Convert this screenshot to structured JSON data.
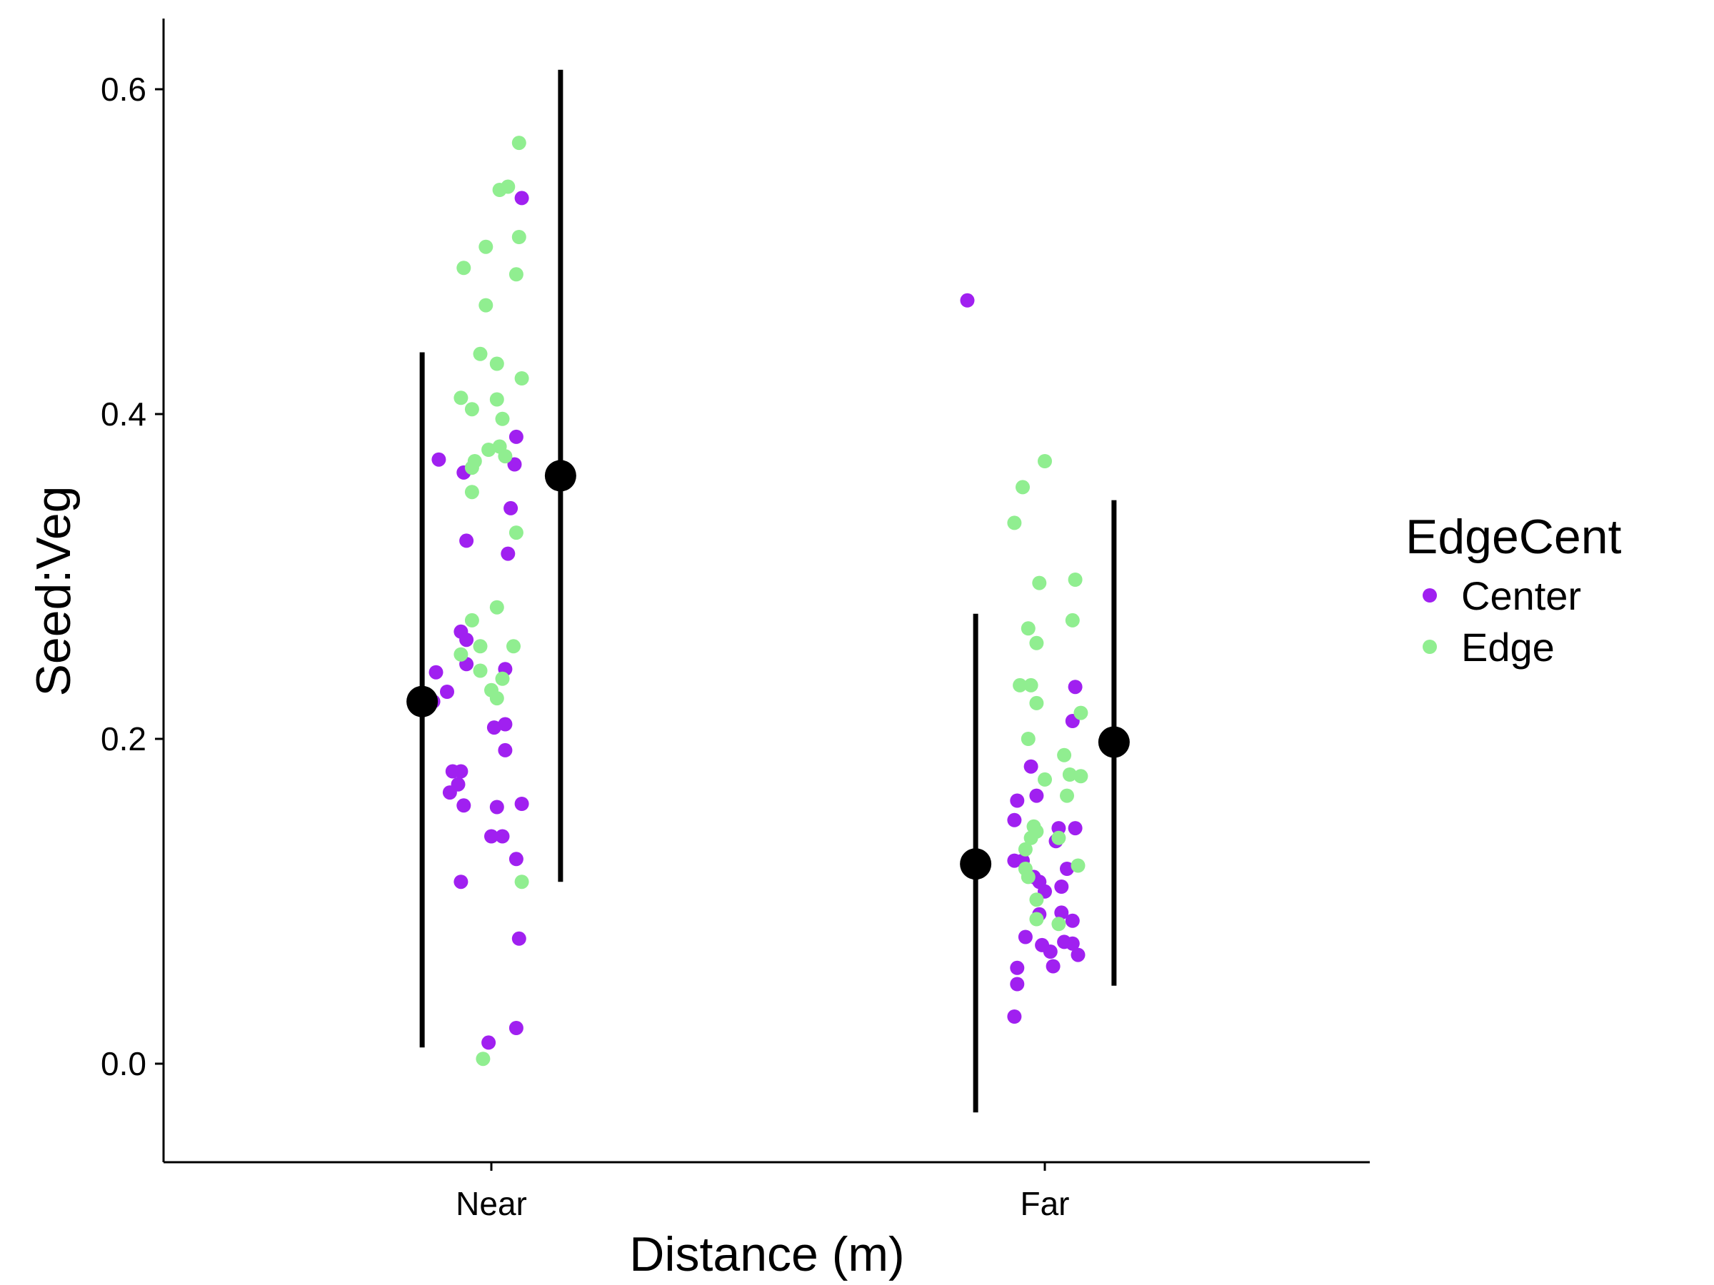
{
  "chart_data": {
    "type": "scatter",
    "xlabel": "Distance (m)",
    "ylabel": "Seed:Veg",
    "categories": [
      "Near",
      "Far"
    ],
    "ylim": [
      -0.06,
      0.645
    ],
    "yticks": [
      "0.0",
      "0.2",
      "0.4",
      "0.6"
    ],
    "grid": false,
    "legend": {
      "title": "EdgeCent",
      "position": "right",
      "entries": [
        {
          "name": "Center",
          "color": "#A020F0"
        },
        {
          "name": "Edge",
          "color": "#90EE90"
        }
      ]
    },
    "series": [
      {
        "name": "Center",
        "color": "#A020F0",
        "points": [
          {
            "x": "Near",
            "offset": -0.095,
            "y": 0.372
          },
          {
            "x": "Near",
            "offset": -0.05,
            "y": 0.364
          },
          {
            "x": "Near",
            "offset": 0.045,
            "y": 0.386
          },
          {
            "x": "Near",
            "offset": 0.042,
            "y": 0.369
          },
          {
            "x": "Near",
            "offset": 0.035,
            "y": 0.342
          },
          {
            "x": "Near",
            "offset": 0.055,
            "y": 0.533
          },
          {
            "x": "Near",
            "offset": -0.045,
            "y": 0.322
          },
          {
            "x": "Near",
            "offset": 0.03,
            "y": 0.314
          },
          {
            "x": "Near",
            "offset": -0.055,
            "y": 0.266
          },
          {
            "x": "Near",
            "offset": -0.045,
            "y": 0.261
          },
          {
            "x": "Near",
            "offset": -0.045,
            "y": 0.246
          },
          {
            "x": "Near",
            "offset": 0.025,
            "y": 0.243
          },
          {
            "x": "Near",
            "offset": -0.1,
            "y": 0.241
          },
          {
            "x": "Near",
            "offset": -0.08,
            "y": 0.229
          },
          {
            "x": "Near",
            "offset": -0.105,
            "y": 0.223
          },
          {
            "x": "Near",
            "offset": 0.025,
            "y": 0.209
          },
          {
            "x": "Near",
            "offset": 0.005,
            "y": 0.207
          },
          {
            "x": "Near",
            "offset": 0.025,
            "y": 0.193
          },
          {
            "x": "Near",
            "offset": -0.07,
            "y": 0.18
          },
          {
            "x": "Near",
            "offset": -0.055,
            "y": 0.18
          },
          {
            "x": "Near",
            "offset": -0.06,
            "y": 0.172
          },
          {
            "x": "Near",
            "offset": -0.075,
            "y": 0.167
          },
          {
            "x": "Near",
            "offset": -0.05,
            "y": 0.159
          },
          {
            "x": "Near",
            "offset": 0.01,
            "y": 0.158
          },
          {
            "x": "Near",
            "offset": 0.055,
            "y": 0.16
          },
          {
            "x": "Near",
            "offset": 0.02,
            "y": 0.14
          },
          {
            "x": "Near",
            "offset": 0.0,
            "y": 0.14
          },
          {
            "x": "Near",
            "offset": 0.045,
            "y": 0.126
          },
          {
            "x": "Near",
            "offset": -0.055,
            "y": 0.112
          },
          {
            "x": "Near",
            "offset": 0.05,
            "y": 0.077
          },
          {
            "x": "Near",
            "offset": 0.045,
            "y": 0.022
          },
          {
            "x": "Near",
            "offset": -0.005,
            "y": 0.013
          },
          {
            "x": "Far",
            "offset": -0.14,
            "y": 0.47
          },
          {
            "x": "Far",
            "offset": 0.055,
            "y": 0.232
          },
          {
            "x": "Far",
            "offset": 0.05,
            "y": 0.211
          },
          {
            "x": "Far",
            "offset": -0.025,
            "y": 0.183
          },
          {
            "x": "Far",
            "offset": -0.015,
            "y": 0.165
          },
          {
            "x": "Far",
            "offset": -0.05,
            "y": 0.162
          },
          {
            "x": "Far",
            "offset": -0.055,
            "y": 0.15
          },
          {
            "x": "Far",
            "offset": 0.025,
            "y": 0.145
          },
          {
            "x": "Far",
            "offset": 0.055,
            "y": 0.145
          },
          {
            "x": "Far",
            "offset": 0.02,
            "y": 0.137
          },
          {
            "x": "Far",
            "offset": -0.055,
            "y": 0.125
          },
          {
            "x": "Far",
            "offset": -0.04,
            "y": 0.125
          },
          {
            "x": "Far",
            "offset": 0.04,
            "y": 0.12
          },
          {
            "x": "Far",
            "offset": -0.02,
            "y": 0.115
          },
          {
            "x": "Far",
            "offset": -0.01,
            "y": 0.112
          },
          {
            "x": "Far",
            "offset": 0.03,
            "y": 0.109
          },
          {
            "x": "Far",
            "offset": 0.0,
            "y": 0.106
          },
          {
            "x": "Far",
            "offset": 0.03,
            "y": 0.093
          },
          {
            "x": "Far",
            "offset": 0.05,
            "y": 0.088
          },
          {
            "x": "Far",
            "offset": -0.01,
            "y": 0.092
          },
          {
            "x": "Far",
            "offset": -0.035,
            "y": 0.078
          },
          {
            "x": "Far",
            "offset": 0.035,
            "y": 0.075
          },
          {
            "x": "Far",
            "offset": 0.05,
            "y": 0.074
          },
          {
            "x": "Far",
            "offset": -0.005,
            "y": 0.073
          },
          {
            "x": "Far",
            "offset": 0.01,
            "y": 0.069
          },
          {
            "x": "Far",
            "offset": 0.06,
            "y": 0.067
          },
          {
            "x": "Far",
            "offset": 0.015,
            "y": 0.06
          },
          {
            "x": "Far",
            "offset": -0.05,
            "y": 0.059
          },
          {
            "x": "Far",
            "offset": -0.05,
            "y": 0.049
          },
          {
            "x": "Far",
            "offset": -0.055,
            "y": 0.029
          }
        ]
      },
      {
        "name": "Edge",
        "color": "#90EE90",
        "points": [
          {
            "x": "Near",
            "offset": 0.05,
            "y": 0.567
          },
          {
            "x": "Near",
            "offset": 0.03,
            "y": 0.54
          },
          {
            "x": "Near",
            "offset": 0.015,
            "y": 0.538
          },
          {
            "x": "Near",
            "offset": 0.05,
            "y": 0.509
          },
          {
            "x": "Near",
            "offset": -0.01,
            "y": 0.503
          },
          {
            "x": "Near",
            "offset": -0.05,
            "y": 0.49
          },
          {
            "x": "Near",
            "offset": 0.045,
            "y": 0.486
          },
          {
            "x": "Near",
            "offset": -0.01,
            "y": 0.467
          },
          {
            "x": "Near",
            "offset": -0.02,
            "y": 0.437
          },
          {
            "x": "Near",
            "offset": 0.01,
            "y": 0.431
          },
          {
            "x": "Near",
            "offset": 0.055,
            "y": 0.422
          },
          {
            "x": "Near",
            "offset": -0.055,
            "y": 0.41
          },
          {
            "x": "Near",
            "offset": 0.01,
            "y": 0.409
          },
          {
            "x": "Near",
            "offset": -0.035,
            "y": 0.403
          },
          {
            "x": "Near",
            "offset": 0.02,
            "y": 0.397
          },
          {
            "x": "Near",
            "offset": 0.015,
            "y": 0.38
          },
          {
            "x": "Near",
            "offset": -0.005,
            "y": 0.378
          },
          {
            "x": "Near",
            "offset": 0.025,
            "y": 0.374
          },
          {
            "x": "Near",
            "offset": -0.03,
            "y": 0.371
          },
          {
            "x": "Near",
            "offset": -0.035,
            "y": 0.367
          },
          {
            "x": "Near",
            "offset": -0.035,
            "y": 0.352
          },
          {
            "x": "Near",
            "offset": 0.045,
            "y": 0.327
          },
          {
            "x": "Near",
            "offset": 0.01,
            "y": 0.281
          },
          {
            "x": "Near",
            "offset": -0.035,
            "y": 0.273
          },
          {
            "x": "Near",
            "offset": -0.02,
            "y": 0.257
          },
          {
            "x": "Near",
            "offset": 0.04,
            "y": 0.257
          },
          {
            "x": "Near",
            "offset": -0.055,
            "y": 0.252
          },
          {
            "x": "Near",
            "offset": -0.02,
            "y": 0.242
          },
          {
            "x": "Near",
            "offset": 0.02,
            "y": 0.237
          },
          {
            "x": "Near",
            "offset": 0.0,
            "y": 0.23
          },
          {
            "x": "Near",
            "offset": 0.01,
            "y": 0.225
          },
          {
            "x": "Near",
            "offset": 0.055,
            "y": 0.112
          },
          {
            "x": "Near",
            "offset": -0.015,
            "y": 0.003
          },
          {
            "x": "Far",
            "offset": 0.0,
            "y": 0.371
          },
          {
            "x": "Far",
            "offset": -0.04,
            "y": 0.355
          },
          {
            "x": "Far",
            "offset": -0.055,
            "y": 0.333
          },
          {
            "x": "Far",
            "offset": 0.055,
            "y": 0.298
          },
          {
            "x": "Far",
            "offset": -0.01,
            "y": 0.296
          },
          {
            "x": "Far",
            "offset": 0.05,
            "y": 0.273
          },
          {
            "x": "Far",
            "offset": -0.03,
            "y": 0.268
          },
          {
            "x": "Far",
            "offset": -0.015,
            "y": 0.259
          },
          {
            "x": "Far",
            "offset": -0.045,
            "y": 0.233
          },
          {
            "x": "Far",
            "offset": -0.025,
            "y": 0.233
          },
          {
            "x": "Far",
            "offset": -0.015,
            "y": 0.222
          },
          {
            "x": "Far",
            "offset": 0.065,
            "y": 0.216
          },
          {
            "x": "Far",
            "offset": -0.03,
            "y": 0.2
          },
          {
            "x": "Far",
            "offset": 0.035,
            "y": 0.19
          },
          {
            "x": "Far",
            "offset": 0.065,
            "y": 0.177
          },
          {
            "x": "Far",
            "offset": 0.045,
            "y": 0.178
          },
          {
            "x": "Far",
            "offset": 0.0,
            "y": 0.175
          },
          {
            "x": "Far",
            "offset": 0.04,
            "y": 0.165
          },
          {
            "x": "Far",
            "offset": -0.02,
            "y": 0.146
          },
          {
            "x": "Far",
            "offset": -0.015,
            "y": 0.143
          },
          {
            "x": "Far",
            "offset": -0.025,
            "y": 0.139
          },
          {
            "x": "Far",
            "offset": 0.025,
            "y": 0.139
          },
          {
            "x": "Far",
            "offset": -0.035,
            "y": 0.132
          },
          {
            "x": "Far",
            "offset": 0.06,
            "y": 0.122
          },
          {
            "x": "Far",
            "offset": -0.035,
            "y": 0.12
          },
          {
            "x": "Far",
            "offset": -0.03,
            "y": 0.115
          },
          {
            "x": "Far",
            "offset": -0.015,
            "y": 0.101
          },
          {
            "x": "Far",
            "offset": -0.015,
            "y": 0.089
          },
          {
            "x": "Far",
            "offset": 0.025,
            "y": 0.086
          }
        ]
      }
    ],
    "summary": [
      {
        "x": "Near",
        "group": "Center",
        "offset": -0.125,
        "mean": 0.223,
        "lower": 0.01,
        "upper": 0.438
      },
      {
        "x": "Near",
        "group": "Edge",
        "offset": 0.125,
        "mean": 0.362,
        "lower": 0.112,
        "upper": 0.612
      },
      {
        "x": "Far",
        "group": "Center",
        "offset": -0.125,
        "mean": 0.123,
        "lower": -0.03,
        "upper": 0.277
      },
      {
        "x": "Far",
        "group": "Edge",
        "offset": 0.125,
        "mean": 0.198,
        "lower": 0.048,
        "upper": 0.347
      }
    ]
  }
}
